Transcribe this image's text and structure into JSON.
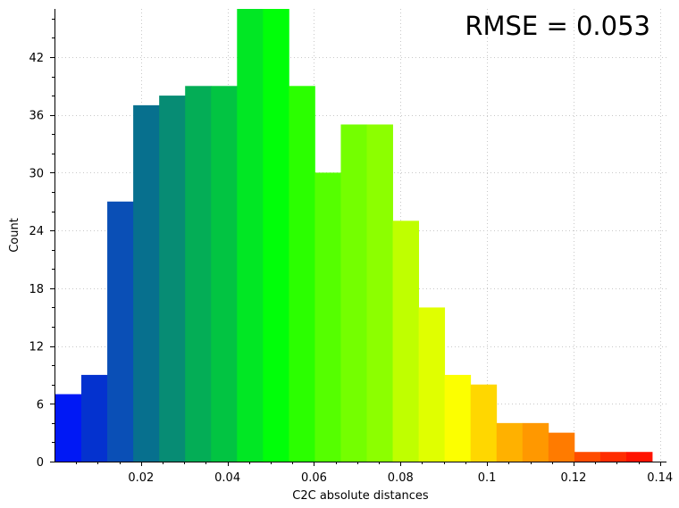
{
  "chart_data": {
    "type": "bar",
    "xlabel": "C2C absolute distances",
    "ylabel": "Count",
    "annotation": "RMSE = 0.053",
    "xlim": [
      0,
      0.1415
    ],
    "ylim": [
      0,
      47
    ],
    "x_ticks": [
      0.02,
      0.04,
      0.06,
      0.08,
      0.1,
      0.12,
      0.14
    ],
    "x_tick_labels": [
      "0.02",
      "0.04",
      "0.06",
      "0.08",
      "0.1",
      "0.12",
      "0.14"
    ],
    "y_ticks": [
      0,
      6,
      12,
      18,
      24,
      30,
      36,
      42
    ],
    "y_tick_labels": [
      "0",
      "6",
      "12",
      "18",
      "24",
      "30",
      "36",
      "42"
    ],
    "grid": true,
    "bin_width": 0.006,
    "bin_start": 0.0002,
    "values": [
      7,
      9,
      27,
      37,
      38,
      39,
      39,
      47,
      47,
      39,
      30,
      35,
      35,
      25,
      16,
      9,
      8,
      4,
      4,
      3,
      1,
      1,
      1
    ],
    "colors": [
      "#0018f5",
      "#0432cf",
      "#0a4fb6",
      "#07708e",
      "#078c74",
      "#04ad56",
      "#02c442",
      "#01e724",
      "#00ff09",
      "#2bff00",
      "#55ff00",
      "#74ff00",
      "#8cff00",
      "#bfff00",
      "#e0ff00",
      "#fcff00",
      "#ffd700",
      "#ffb100",
      "#ff9800",
      "#ff7b00",
      "#ff4c00",
      "#ff2d00",
      "#ff1300"
    ]
  }
}
